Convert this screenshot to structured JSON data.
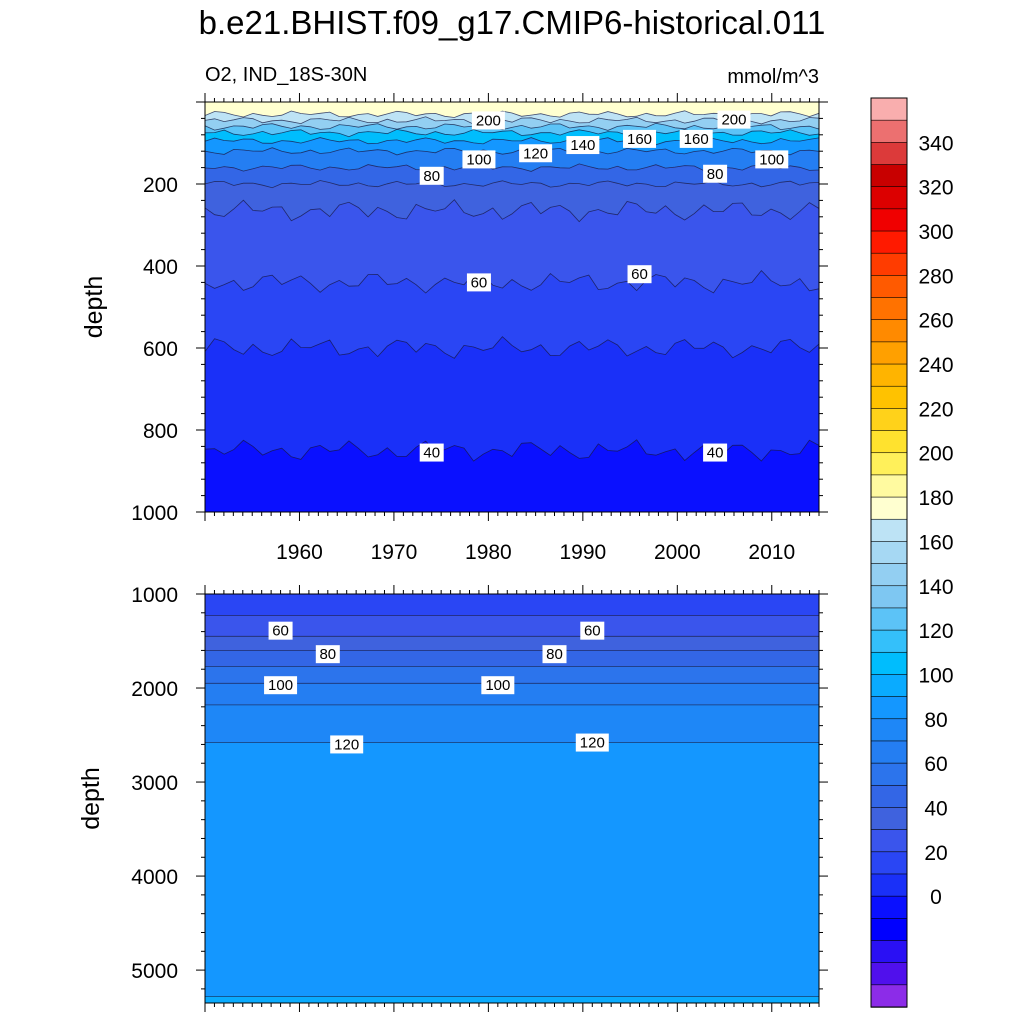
{
  "title": "b.e21.BHIST.f09_g17.CMIP6-historical.011",
  "left_subtitle": "O2, IND_18S-30N",
  "right_subtitle": "mmol/m^3",
  "chart_data": [
    {
      "type": "heatmap",
      "panel": "upper",
      "ylabel": "depth",
      "ylim": [
        1000,
        0
      ],
      "xlim": [
        1950,
        2015
      ],
      "x_ticks": [
        "1960",
        "1970",
        "1980",
        "1990",
        "2000",
        "2010"
      ],
      "y_ticks": [
        "200",
        "400",
        "600",
        "800",
        "1000"
      ],
      "levels": [
        {
          "top": 0,
          "bottom": 30,
          "value": 210
        },
        {
          "top": 30,
          "bottom": 45,
          "value": 200
        },
        {
          "top": 45,
          "bottom": 60,
          "value": 180
        },
        {
          "top": 60,
          "bottom": 75,
          "value": 160
        },
        {
          "top": 75,
          "bottom": 95,
          "value": 140
        },
        {
          "top": 95,
          "bottom": 120,
          "value": 120
        },
        {
          "top": 120,
          "bottom": 160,
          "value": 100
        },
        {
          "top": 160,
          "bottom": 200,
          "value": 80
        },
        {
          "top": 200,
          "bottom": 265,
          "value": 70
        },
        {
          "top": 265,
          "bottom": 440,
          "value": 60
        },
        {
          "top": 440,
          "bottom": 600,
          "value": 50
        },
        {
          "top": 600,
          "bottom": 850,
          "value": 40
        },
        {
          "top": 850,
          "bottom": 1000,
          "value": 30
        }
      ],
      "contour_labels": [
        {
          "text": "200",
          "x": 1980,
          "depth": 45
        },
        {
          "text": "200",
          "x": 2006,
          "depth": 43
        },
        {
          "text": "160",
          "x": 1996,
          "depth": 90
        },
        {
          "text": "160",
          "x": 2002,
          "depth": 90
        },
        {
          "text": "140",
          "x": 1990,
          "depth": 105
        },
        {
          "text": "120",
          "x": 1985,
          "depth": 125
        },
        {
          "text": "100",
          "x": 1979,
          "depth": 140
        },
        {
          "text": "100",
          "x": 2010,
          "depth": 140
        },
        {
          "text": "80",
          "x": 1974,
          "depth": 180
        },
        {
          "text": "80",
          "x": 2004,
          "depth": 175
        },
        {
          "text": "60",
          "x": 1979,
          "depth": 440
        },
        {
          "text": "60",
          "x": 1996,
          "depth": 420
        },
        {
          "text": "40",
          "x": 1974,
          "depth": 855
        },
        {
          "text": "40",
          "x": 2004,
          "depth": 855
        }
      ]
    },
    {
      "type": "heatmap",
      "panel": "lower",
      "ylabel": "depth",
      "ylim": [
        5350,
        1000
      ],
      "xlim": [
        1950,
        2015
      ],
      "y_ticks": [
        "1000",
        "2000",
        "3000",
        "4000",
        "5000"
      ],
      "levels": [
        {
          "top": 1000,
          "bottom": 1230,
          "value": 50
        },
        {
          "top": 1230,
          "bottom": 1450,
          "value": 60
        },
        {
          "top": 1450,
          "bottom": 1600,
          "value": 70
        },
        {
          "top": 1600,
          "bottom": 1770,
          "value": 80
        },
        {
          "top": 1770,
          "bottom": 1950,
          "value": 90
        },
        {
          "top": 1950,
          "bottom": 2180,
          "value": 100
        },
        {
          "top": 2180,
          "bottom": 2580,
          "value": 110
        },
        {
          "top": 2580,
          "bottom": 5280,
          "value": 120
        },
        {
          "top": 5280,
          "bottom": 5350,
          "value": 130
        }
      ],
      "contour_labels": [
        {
          "text": "60",
          "x": 1958,
          "depth": 1390
        },
        {
          "text": "60",
          "x": 1991,
          "depth": 1390
        },
        {
          "text": "80",
          "x": 1963,
          "depth": 1640
        },
        {
          "text": "80",
          "x": 1987,
          "depth": 1640
        },
        {
          "text": "100",
          "x": 1958,
          "depth": 1970
        },
        {
          "text": "100",
          "x": 1981,
          "depth": 1970
        },
        {
          "text": "120",
          "x": 1965,
          "depth": 2600
        },
        {
          "text": "120",
          "x": 1991,
          "depth": 2580
        }
      ]
    }
  ],
  "colorbar": {
    "labels": [
      "340",
      "320",
      "300",
      "280",
      "260",
      "240",
      "220",
      "200",
      "180",
      "160",
      "140",
      "120",
      "100",
      "80",
      "60",
      "40",
      "20",
      "0"
    ],
    "colors": [
      "#f9aeae",
      "#ec7070",
      "#dc3a3a",
      "#c80000",
      "#dc0000",
      "#f00000",
      "#ff1a00",
      "#ff3c00",
      "#ff5a00",
      "#ff7200",
      "#ff8a00",
      "#ffa000",
      "#ffb400",
      "#ffc200",
      "#ffd21a",
      "#ffe22e",
      "#fff05a",
      "#fffaa0",
      "#ffffd0",
      "#bde3f5",
      "#a6d8f3",
      "#93cff2",
      "#7ec7f2",
      "#5cc3f7",
      "#34c0fa",
      "#00bdfd",
      "#0aabff",
      "#1497ff",
      "#1e87f7",
      "#247ef2",
      "#2c74ec",
      "#3366e6",
      "#3f62de",
      "#3a55ec",
      "#2a46f4",
      "#1a30f8",
      "#0a10ff",
      "#0000ff",
      "#2a10f4",
      "#5010ec",
      "#8c2ce8"
    ]
  }
}
